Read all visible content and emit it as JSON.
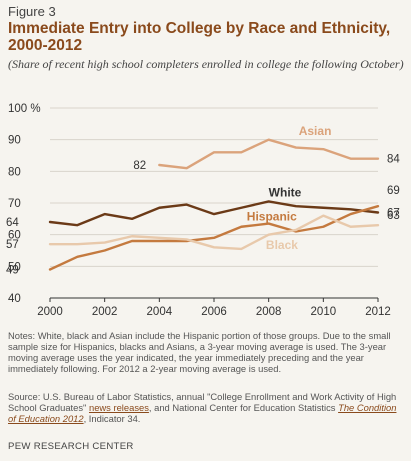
{
  "figure_label": "Figure 3",
  "title": "Immediate Entry into College by Race and Ethnicity, 2000-2012",
  "subtitle": "(Share of recent high school completers enrolled in college the following October)",
  "notes": "Notes: White, black and Asian include the Hispanic portion of those groups. Due to the small sample size for Hispanics, blacks and Asians, a 3-year moving average is used. The 3-year moving average uses the year indicated, the year immediately preceding and the year immediately following. For 2012 a 2-year moving average is used.",
  "source": {
    "part1": "Source: U.S. Bureau of Labor Statistics, annual \"College Enrollment and Work Activity of High School Graduates\" ",
    "link1": "news releases",
    "part2": ", and National Center for Education Statistics ",
    "link2": "The Condition of Education 2012",
    "part3": ", Indicator 34."
  },
  "credit": "PEW RESEARCH CENTER",
  "chart_data": {
    "type": "line",
    "ylim": [
      40,
      100
    ],
    "xlim": [
      2000,
      2012
    ],
    "y_ticks": [
      "40",
      "50",
      "60",
      "70",
      "80",
      "90",
      "100 %"
    ],
    "y_tick_values": [
      40,
      50,
      60,
      70,
      80,
      90,
      100
    ],
    "x_ticks": [
      "2000",
      "2002",
      "2004",
      "2006",
      "2008",
      "2010",
      "2012"
    ],
    "x_tick_values": [
      2000,
      2002,
      2004,
      2006,
      2008,
      2010,
      2012
    ],
    "grid": true,
    "colors": {
      "asian": "#dba37b",
      "white": "#6b3a17",
      "hispanic": "#c47a3f",
      "black": "#e8c9ab",
      "grid": "#d9d4cb",
      "axis": "#333333"
    },
    "series": [
      {
        "name": "Asian",
        "color": "#dba37b",
        "label_color": "#dba37b",
        "bold_label": true,
        "x": [
          2004,
          2005,
          2006,
          2007,
          2008,
          2009,
          2010,
          2011,
          2012
        ],
        "values": [
          82,
          81,
          86,
          86,
          90,
          87.5,
          87,
          84,
          84
        ],
        "start_label": "82",
        "end_label": "84"
      },
      {
        "name": "White",
        "color": "#6b3a17",
        "label_color": "#333333",
        "bold_label": true,
        "x": [
          2000,
          2001,
          2002,
          2003,
          2004,
          2005,
          2006,
          2007,
          2008,
          2009,
          2010,
          2011,
          2012
        ],
        "values": [
          64,
          63,
          66.5,
          65,
          68.5,
          69.5,
          66.5,
          68.5,
          70.5,
          69,
          68.5,
          68,
          67
        ],
        "start_label": "64",
        "end_label": "67"
      },
      {
        "name": "Hispanic",
        "color": "#c47a3f",
        "label_color": "#c47a3f",
        "bold_label": true,
        "x": [
          2000,
          2001,
          2002,
          2003,
          2004,
          2005,
          2006,
          2007,
          2008,
          2009,
          2010,
          2011,
          2012
        ],
        "values": [
          49,
          53,
          55,
          58,
          58,
          58,
          59,
          62.5,
          63.5,
          61,
          62.5,
          66.5,
          69
        ],
        "start_label": "49",
        "end_label": "69"
      },
      {
        "name": "Black",
        "color": "#e8c9ab",
        "label_color": "#e8c9ab",
        "bold_label": true,
        "x": [
          2000,
          2001,
          2002,
          2003,
          2004,
          2005,
          2006,
          2007,
          2008,
          2009,
          2010,
          2011,
          2012
        ],
        "values": [
          57,
          57,
          57.5,
          59.5,
          59,
          58.5,
          56,
          55.5,
          60,
          61.5,
          66,
          62.5,
          63
        ],
        "start_label": "57",
        "end_label": "63"
      }
    ]
  }
}
